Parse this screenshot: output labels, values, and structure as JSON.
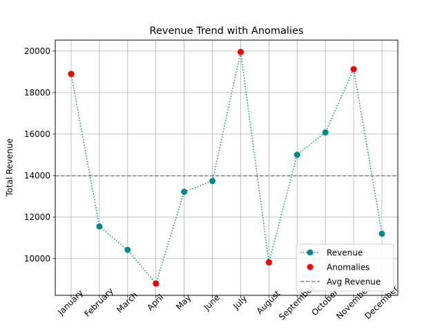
{
  "chart_data": {
    "type": "line",
    "title": "Revenue Trend with Anomalies",
    "xlabel": "",
    "ylabel": "Total Revenue",
    "categories": [
      "January",
      "February",
      "March",
      "April",
      "May",
      "June",
      "July",
      "August",
      "September",
      "October",
      "November",
      "December"
    ],
    "series": [
      {
        "name": "Revenue",
        "values": [
          18900,
          11550,
          10420,
          8800,
          13220,
          13740,
          19960,
          9820,
          15010,
          16080,
          19130,
          11200
        ],
        "color": "#008b8b",
        "line_style": "dotted",
        "marker": "circle"
      }
    ],
    "anomalies": {
      "name": "Anomalies",
      "categories": [
        "January",
        "April",
        "July",
        "August",
        "November"
      ],
      "values": [
        18900,
        8800,
        19960,
        9820,
        19130
      ],
      "color": "#ff0000"
    },
    "reference_line": {
      "name": "Avg Revenue",
      "value": 13990,
      "color": "#808080",
      "line_style": "dashed"
    },
    "y_ticks": [
      10000,
      12000,
      14000,
      16000,
      18000,
      20000
    ],
    "ylim": [
      8230,
      20530
    ],
    "grid": true,
    "legend_position": "lower-right"
  }
}
